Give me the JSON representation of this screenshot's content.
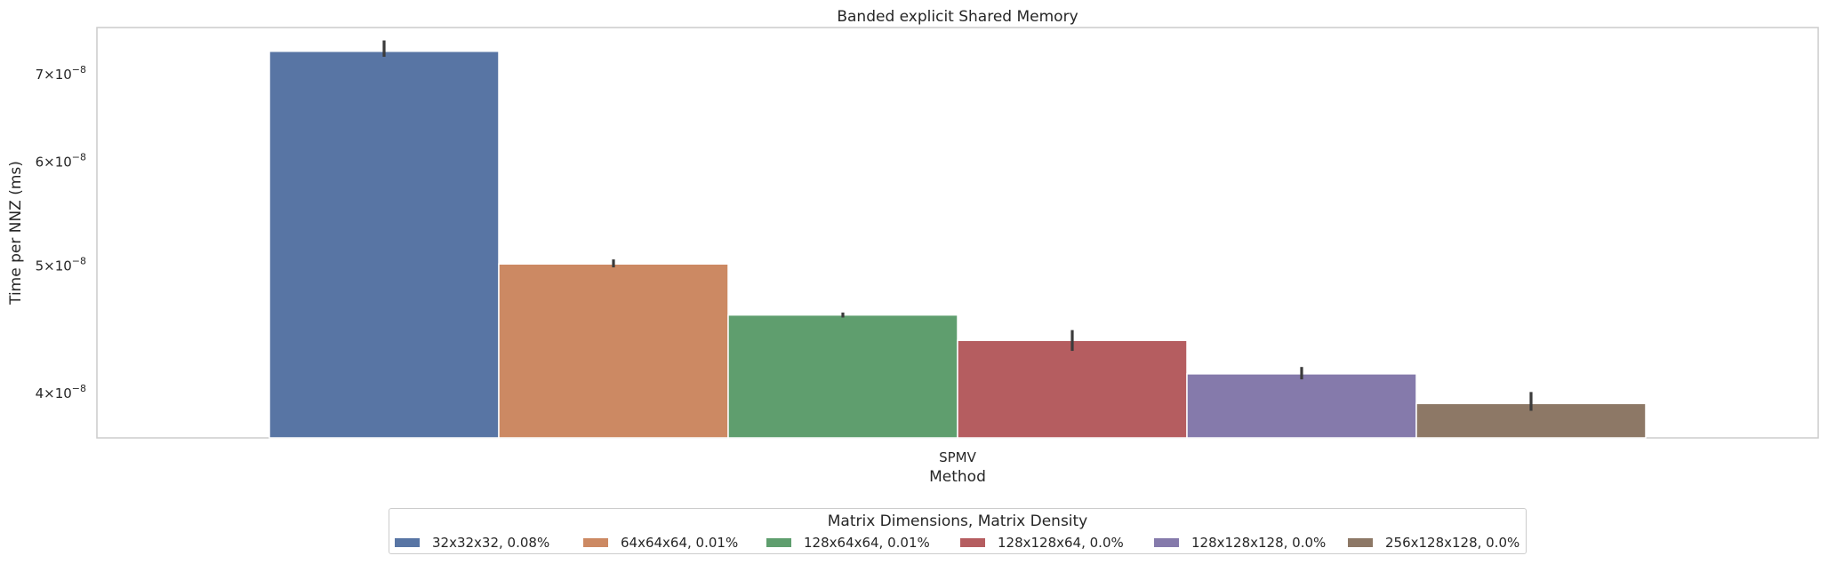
{
  "chart_data": {
    "type": "bar",
    "title": "Banded explicit Shared Memory",
    "xlabel": "Method",
    "ylabel": "Time per NNZ (ms)",
    "yscale": "log",
    "ylim": [
      3.7e-08,
      7.6e-08
    ],
    "yticks": [
      {
        "value": 4e-08,
        "mantissa": "4",
        "exp": "−8"
      },
      {
        "value": 5e-08,
        "mantissa": "5",
        "exp": "−8"
      },
      {
        "value": 6e-08,
        "mantissa": "6",
        "exp": "−8"
      },
      {
        "value": 7e-08,
        "mantissa": "7",
        "exp": "−8"
      }
    ],
    "tick_times": "×10",
    "categories": [
      "SPMV"
    ],
    "grid": false,
    "legend": {
      "title": "Matrix Dimensions, Matrix Density",
      "placement": "bottom-center"
    },
    "series": [
      {
        "name": "32x32x32, 0.08%",
        "values": [
          7.29e-08
        ],
        "err": [
          [
            7.22e-08,
            7.43e-08
          ]
        ],
        "color": "#5875a4"
      },
      {
        "name": "64x64x64, 0.01%",
        "values": [
          5.02e-08
        ],
        "err": [
          [
            4.99e-08,
            5.06e-08
          ]
        ],
        "color": "#cc8963"
      },
      {
        "name": "128x64x64, 0.01%",
        "values": [
          4.59e-08
        ],
        "err": [
          [
            4.57e-08,
            4.61e-08
          ]
        ],
        "color": "#5f9e6e"
      },
      {
        "name": "128x128x64, 0.0%",
        "values": [
          4.39e-08
        ],
        "err": [
          [
            4.31e-08,
            4.47e-08
          ]
        ],
        "color": "#b55d60"
      },
      {
        "name": "128x128x128, 0.0%",
        "values": [
          4.14e-08
        ],
        "err": [
          [
            4.1e-08,
            4.19e-08
          ]
        ],
        "color": "#857aab"
      },
      {
        "name": "256x128x128, 0.0%",
        "values": [
          3.93e-08
        ],
        "err": [
          [
            3.88e-08,
            4.01e-08
          ]
        ],
        "color": "#8d7866"
      }
    ]
  }
}
